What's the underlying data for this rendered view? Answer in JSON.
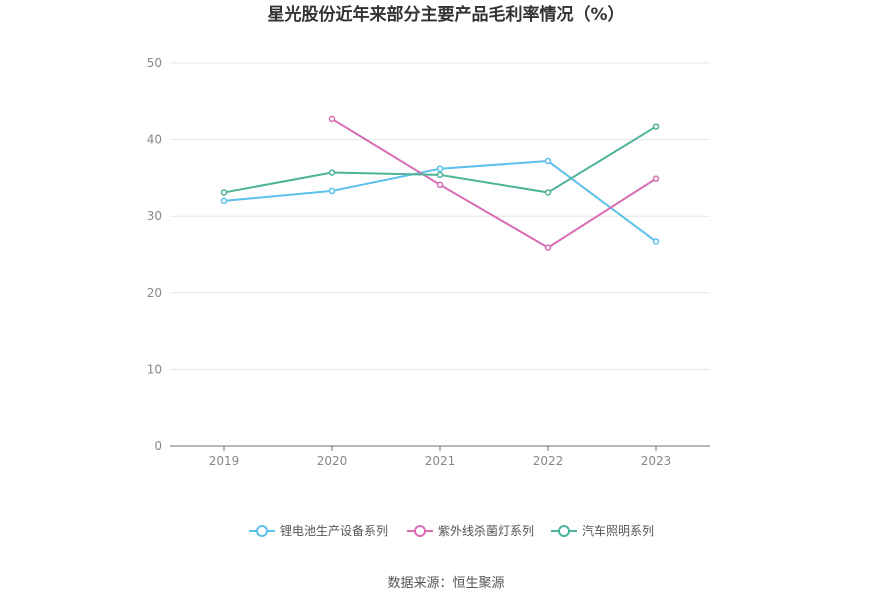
{
  "chart_data": {
    "type": "line",
    "title": "星光股份近年来部分主要产品毛利率情况（%）",
    "xlabel": "",
    "ylabel": "",
    "categories": [
      "2019",
      "2020",
      "2021",
      "2022",
      "2023"
    ],
    "ylim": [
      0,
      50
    ],
    "yticks": [
      0,
      10,
      20,
      30,
      40,
      50
    ],
    "grid": true,
    "legend_position": "bottom",
    "series": [
      {
        "name": "锂电池生产设备系列",
        "color": "#5bc0eb",
        "values": [
          32.0,
          33.3,
          36.2,
          37.2,
          26.7
        ]
      },
      {
        "name": "紫外线杀菌灯系列",
        "color": "#d96db4",
        "values": [
          null,
          42.7,
          34.1,
          25.9,
          34.9
        ]
      },
      {
        "name": "汽车照明系列",
        "color": "#4db39a",
        "values": [
          33.1,
          35.7,
          35.4,
          33.1,
          41.7
        ]
      }
    ]
  },
  "source": "数据来源：恒生聚源"
}
